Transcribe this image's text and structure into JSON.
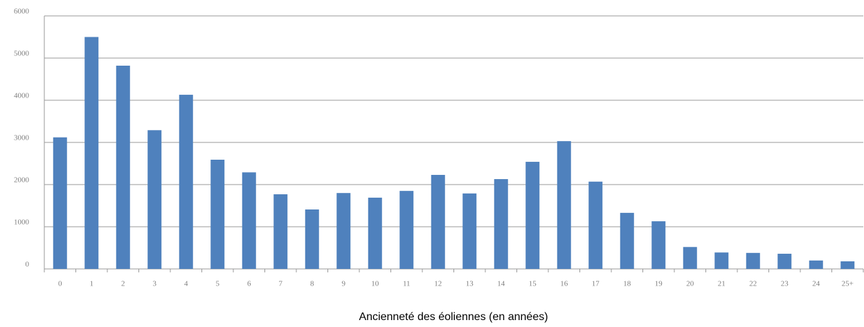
{
  "chart_data": {
    "type": "bar",
    "x_label": "Ancienneté des éoliennes (en années)",
    "categories": [
      "0",
      "1",
      "2",
      "3",
      "4",
      "5",
      "6",
      "7",
      "8",
      "9",
      "10",
      "11",
      "12",
      "13",
      "14",
      "15",
      "16",
      "17",
      "18",
      "19",
      "20",
      "21",
      "22",
      "23",
      "24",
      "25+"
    ],
    "values": [
      3120,
      5500,
      4820,
      3290,
      4130,
      2590,
      2290,
      1770,
      1410,
      1800,
      1690,
      1850,
      2230,
      1790,
      2130,
      2540,
      3030,
      2070,
      1330,
      1130,
      520,
      390,
      380,
      360,
      200,
      180
    ],
    "color": "#4f81bd",
    "ylim": [
      0,
      6000
    ],
    "yticks": [
      0,
      1000,
      2000,
      3000,
      4000,
      5000,
      6000
    ],
    "grid": true
  }
}
